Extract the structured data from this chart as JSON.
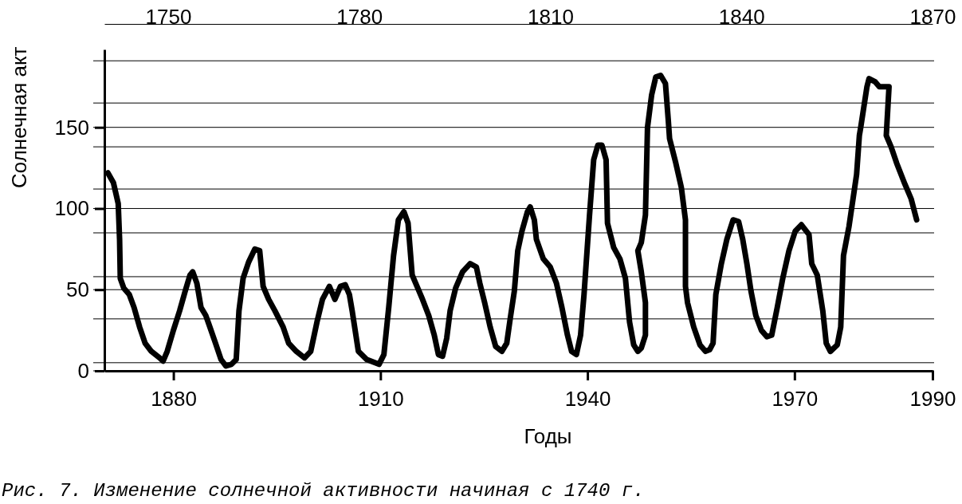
{
  "chart_data": {
    "type": "line",
    "ylabel": "Солнечная акт",
    "xlabel": "Годы",
    "annotations": [
      "Рис. 7. Изменение солнечной активности начиная с 1740 г."
    ],
    "xlim": [
      1870,
      1990
    ],
    "xticks": [
      1880,
      1910,
      1940,
      1970,
      1990
    ],
    "x2lim": [
      1740,
      1870
    ],
    "x2ticks": [
      1750,
      1780,
      1810,
      1840,
      1870
    ],
    "ylim": [
      0,
      198
    ],
    "yticks": [
      0,
      50,
      100,
      150,
      {
        "value": 5,
        "label": null
      },
      {
        "value": 32,
        "label": null
      },
      {
        "value": 58,
        "label": null
      },
      {
        "value": 85,
        "label": null
      },
      {
        "value": 112,
        "label": null
      },
      {
        "value": 138,
        "label": null
      },
      {
        "value": 165,
        "label": null
      },
      {
        "value": 191,
        "label": null
      }
    ],
    "grid": "y",
    "series": [
      {
        "color": "#000000",
        "x": [
          1870.5,
          1871.3,
          1872.0,
          1872.2,
          1872.3,
          1872.8,
          1873.6,
          1874.3,
          1875.1,
          1875.9,
          1876.8,
          1878.0,
          1878.5,
          1879.1,
          1880.0,
          1880.9,
          1881.7,
          1882.4,
          1882.8,
          1883.4,
          1884.0,
          1884.7,
          1885.2,
          1886.1,
          1886.9,
          1887.6,
          1888.4,
          1889.1,
          1889.5,
          1890.1,
          1890.9,
          1891.8,
          1892.5,
          1893.0,
          1893.8,
          1894.7,
          1895.9,
          1896.7,
          1897.8,
          1899.0,
          1899.9,
          1900.8,
          1901.6,
          1902.6,
          1903.4,
          1904.2,
          1904.9,
          1905.5,
          1905.9,
          1906.8,
          1908.0,
          1909.2,
          1909.8,
          1910.5,
          1911.2,
          1911.9,
          1912.6,
          1913.4,
          1914.0,
          1914.6,
          1915.3,
          1916.1,
          1917.0,
          1917.8,
          1918.4,
          1919.0,
          1919.6,
          1920.1,
          1920.9,
          1921.9,
          1923.0,
          1923.9,
          1924.4,
          1925.1,
          1925.9,
          1926.7,
          1927.6,
          1928.3,
          1928.8,
          1929.4,
          1929.9,
          1930.5,
          1931.3,
          1931.7,
          1932.3,
          1932.6,
          1933.6,
          1934.6,
          1935.5,
          1936.3,
          1937.1,
          1937.7,
          1938.4,
          1939.0,
          1939.5,
          1940.3,
          1940.9,
          1941.5,
          1942.1,
          1942.7,
          1942.9,
          1943.8,
          1944.7,
          1945.5,
          1946.1,
          1946.7,
          1947.3,
          1947.8,
          1948.4,
          1948.4,
          1947.8,
          1947.3,
          1947.8,
          1948.4,
          1948.7,
          1949.3,
          1949.9,
          1950.6,
          1951.3,
          1951.7,
          1951.9,
          1952.8,
          1953.6,
          1954.2,
          1954.2,
          1954.5,
          1955.4,
          1956.3,
          1957.1,
          1957.7,
          1958.2,
          1958.6,
          1959.4,
          1960.2,
          1961.1,
          1961.9,
          1962.5,
          1963.1,
          1963.7,
          1964.4,
          1965.2,
          1966.0,
          1966.7,
          1967.5,
          1968.3,
          1969.2,
          1970.1,
          1971.0,
          1972.1,
          1972.5,
          1973.3,
          1974.1,
          1974.6,
          1975.2,
          1976.2,
          1976.7,
          1977.1,
          1977.9,
          1979.0,
          1979.4,
          1979.6,
          1980.5,
          1980.8,
          1981.7,
          1982.3,
          1983.7,
          1983.3,
          1984.0,
          1984.8,
          1986.0,
          1986.9,
          1987.7
        ],
        "values": [
          122,
          116,
          103,
          81,
          57,
          51,
          47,
          39,
          27,
          17,
          12,
          8,
          6,
          12,
          25,
          37,
          49,
          59,
          61,
          54,
          39,
          34,
          28,
          17,
          7,
          3,
          4,
          7,
          37,
          57,
          67,
          75,
          74,
          52,
          44,
          37,
          27,
          17,
          12,
          8,
          12,
          30,
          44,
          52,
          44,
          52,
          53,
          47,
          37,
          12,
          7,
          5,
          4,
          10,
          39,
          71,
          93,
          98,
          91,
          59,
          52,
          44,
          34,
          22,
          10,
          9,
          20,
          37,
          51,
          61,
          66,
          64,
          54,
          42,
          27,
          15,
          12,
          17,
          32,
          49,
          74,
          86,
          98,
          101,
          93,
          81,
          69,
          64,
          54,
          39,
          22,
          12,
          10,
          22,
          47,
          96,
          130,
          139,
          139,
          130,
          91,
          76,
          69,
          57,
          30,
          16,
          12,
          14,
          22,
          42,
          61,
          74,
          79,
          96,
          150,
          170,
          181,
          182,
          177,
          155,
          143,
          128,
          113,
          93,
          52,
          42,
          27,
          16,
          12,
          13,
          17,
          47,
          66,
          81,
          93,
          92,
          81,
          66,
          49,
          34,
          25,
          21,
          22,
          39,
          57,
          74,
          86,
          90,
          84,
          66,
          59,
          37,
          17,
          12,
          16,
          27,
          71,
          89,
          121,
          145,
          150,
          175,
          180,
          178,
          175,
          175,
          145,
          138,
          128,
          115,
          106,
          93
        ]
      }
    ]
  }
}
